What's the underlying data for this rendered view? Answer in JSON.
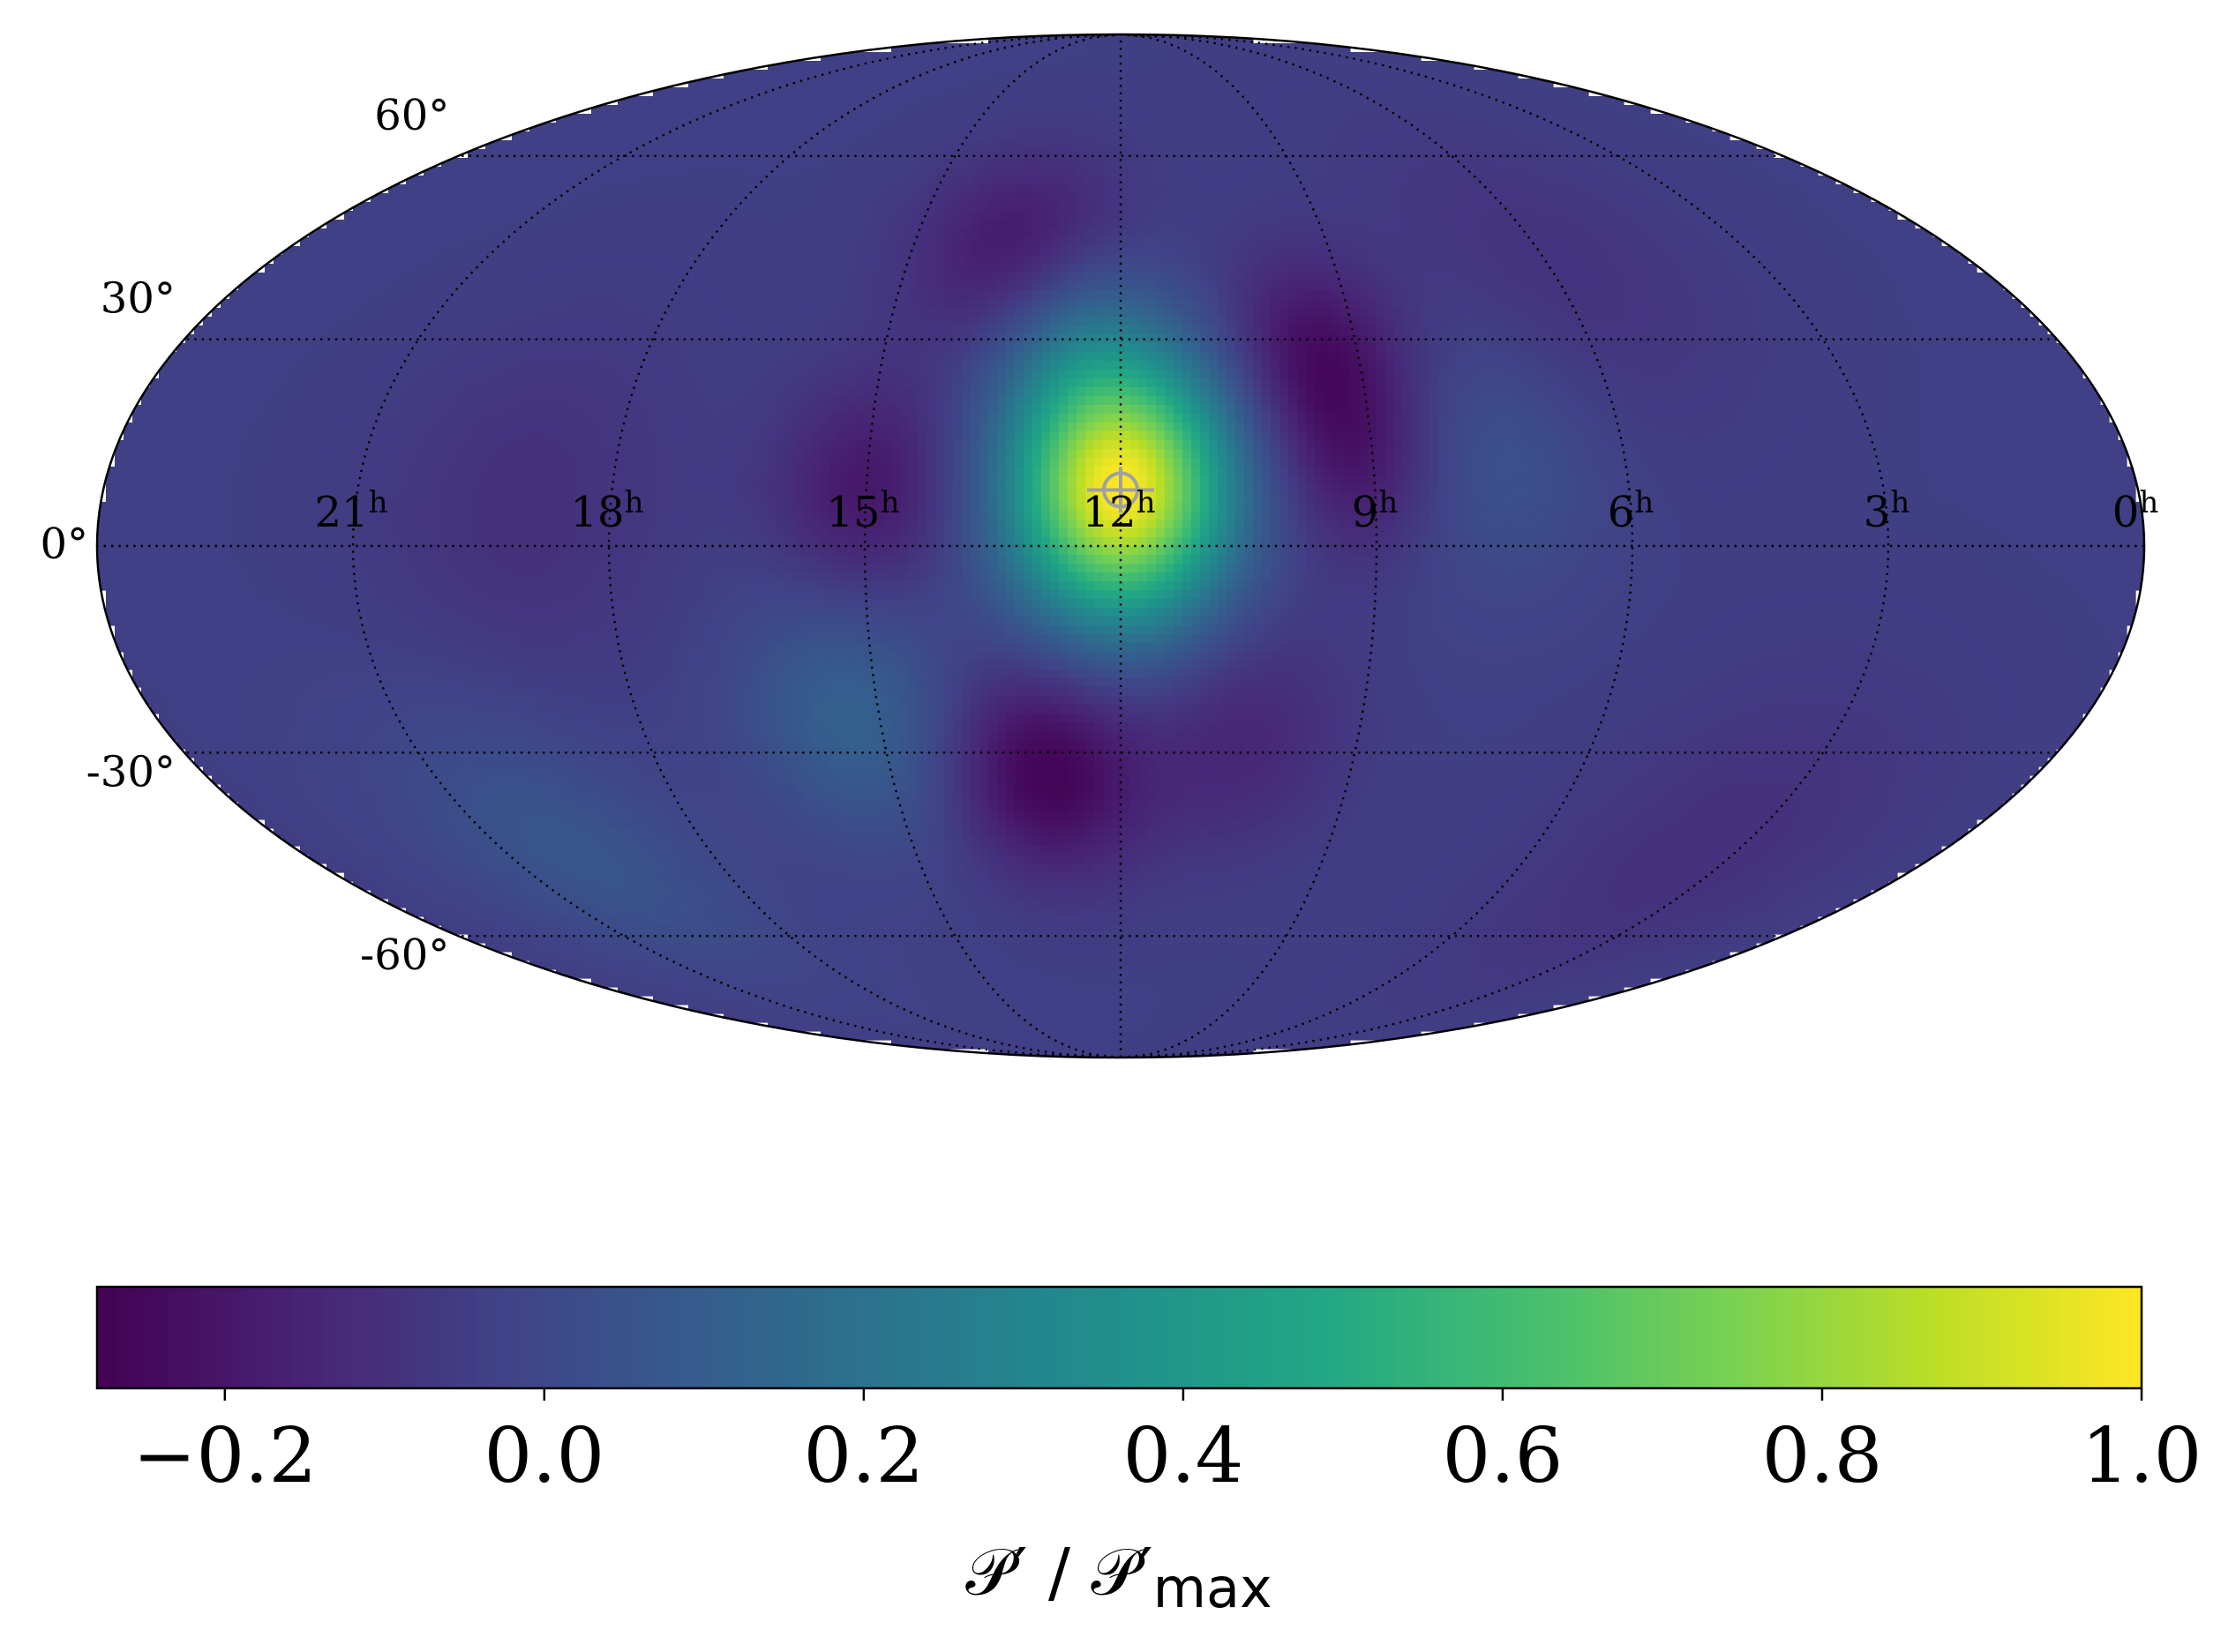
{
  "chart_data": {
    "type": "heatmap",
    "projection": "mollweide",
    "title": "",
    "ra_tick_labels": [
      {
        "hours": 21,
        "text": "21"
      },
      {
        "hours": 18,
        "text": "18"
      },
      {
        "hours": 15,
        "text": "15"
      },
      {
        "hours": 12,
        "text": "12"
      },
      {
        "hours": 9,
        "text": "9"
      },
      {
        "hours": 6,
        "text": "6"
      },
      {
        "hours": 3,
        "text": "3"
      },
      {
        "hours": 0,
        "text": "0"
      }
    ],
    "ra_unit_superscript": "h",
    "dec_tick_labels": [
      {
        "deg": 60,
        "text": "60°"
      },
      {
        "deg": 30,
        "text": "30°"
      },
      {
        "deg": 0,
        "text": "0°"
      },
      {
        "deg": -30,
        "text": "-30°"
      },
      {
        "deg": -60,
        "text": "-60°"
      }
    ],
    "grid": true,
    "grid_style": "dotted",
    "ra_direction": "increasing-left",
    "marker": {
      "ra_hours": 12.0,
      "dec_deg": 8,
      "symbol": "crosshair-circle",
      "color": "#a0a0a0"
    },
    "colormap": "viridis",
    "colorbar": {
      "orientation": "horizontal",
      "location": "bottom",
      "min": -0.28,
      "max": 1.0,
      "ticks": [
        "−0.2",
        "0.0",
        "0.2",
        "0.4",
        "0.6",
        "0.8",
        "1.0"
      ],
      "tick_values": [
        -0.2,
        0.0,
        0.2,
        0.4,
        0.6,
        0.8,
        1.0
      ],
      "label_main": "𝒫′ / 𝒫′",
      "label_sub": "max"
    },
    "features": [
      {
        "ra_hours": 12.0,
        "dec_deg": 8,
        "value": 1.0,
        "sigma_deg": 13
      },
      {
        "ra_hours": 13.5,
        "dec_deg": 44,
        "value": -0.2,
        "sigma_deg": 11
      },
      {
        "ra_hours": 9.5,
        "dec_deg": 28,
        "value": -0.22,
        "sigma_deg": 10
      },
      {
        "ra_hours": 9.2,
        "dec_deg": 12,
        "value": -0.18,
        "sigma_deg": 10
      },
      {
        "ra_hours": 15.0,
        "dec_deg": 8,
        "value": -0.2,
        "sigma_deg": 11
      },
      {
        "ra_hours": 13.0,
        "dec_deg": -33,
        "value": -0.28,
        "sigma_deg": 11
      },
      {
        "ra_hours": 10.5,
        "dec_deg": -28,
        "value": -0.14,
        "sigma_deg": 12
      },
      {
        "ra_hours": 15.3,
        "dec_deg": -25,
        "value": 0.12,
        "sigma_deg": 13
      },
      {
        "ra_hours": 12.6,
        "dec_deg": 30,
        "value": 0.1,
        "sigma_deg": 10
      },
      {
        "ra_hours": 7.5,
        "dec_deg": 12,
        "value": 0.05,
        "sigma_deg": 13
      },
      {
        "ra_hours": 20.0,
        "dec_deg": -45,
        "value": 0.06,
        "sigma_deg": 15
      },
      {
        "ra_hours": 3.5,
        "dec_deg": -45,
        "value": -0.1,
        "sigma_deg": 18
      },
      {
        "ra_hours": 6.0,
        "dec_deg": 40,
        "value": -0.09,
        "sigma_deg": 18
      },
      {
        "ra_hours": 19.0,
        "dec_deg": 5,
        "value": -0.1,
        "sigma_deg": 18
      }
    ],
    "background_value": -0.04
  }
}
